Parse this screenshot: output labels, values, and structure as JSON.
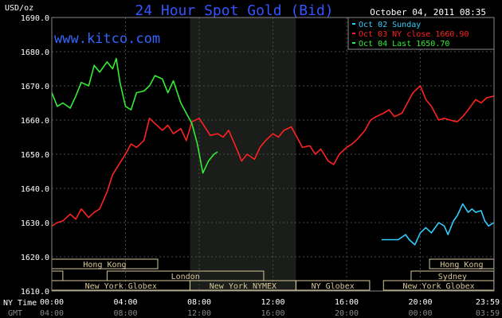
{
  "chart_data": {
    "type": "line",
    "title": "24 Hour Spot Gold (Bid)",
    "ylabel": "USD/oz",
    "watermark": "www.kitco.com",
    "timestamp": "October 04, 2011 08:35",
    "ylim": [
      1610,
      1690
    ],
    "yticks": [
      "1690.0",
      "1680.0",
      "1670.0",
      "1660.0",
      "1650.0",
      "1640.0",
      "1630.0",
      "1620.0",
      "1610.0"
    ],
    "xlim": [
      0,
      24
    ],
    "xticks_ny": [
      "00:00",
      "04:00",
      "08:00",
      "12:00",
      "16:00",
      "20:00",
      "23:59"
    ],
    "xticks_gmt": [
      "04:00",
      "08:00",
      "12:00",
      "16:00",
      "20:00",
      "00:00",
      "03:59"
    ],
    "xlabel_ny": "NY Time",
    "xlabel_gmt": "GMT",
    "nymex_shade": [
      7.5,
      13.25
    ],
    "legend": [
      {
        "label": "Oct 02 Sunday",
        "color": "#33ccff"
      },
      {
        "label": "Oct 03 NY close 1660.90",
        "color": "#ff2222"
      },
      {
        "label": "Oct 04 Last 1650.70",
        "color": "#33ee33"
      }
    ],
    "sessions": [
      {
        "name": "Hong Kong",
        "row": 0,
        "x0": 0,
        "x1": 5.75
      },
      {
        "name": "Hong Kong",
        "row": 0,
        "x0": 20.5,
        "x1": 23.99
      },
      {
        "name": "",
        "row": 1,
        "x0": 0,
        "x1": 0.6
      },
      {
        "name": "London",
        "row": 1,
        "x0": 3.0,
        "x1": 11.5
      },
      {
        "name": "Sydney",
        "row": 1,
        "x0": 19.5,
        "x1": 23.99
      },
      {
        "name": "New York Globex",
        "row": 2,
        "x0": 0,
        "x1": 7.5
      },
      {
        "name": "New York NYMEX",
        "row": 2,
        "x0": 7.5,
        "x1": 13.25
      },
      {
        "name": "NY Globex",
        "row": 2,
        "x0": 13.25,
        "x1": 17.25
      },
      {
        "name": "New York Globex",
        "row": 2,
        "x0": 18.0,
        "x1": 23.99
      }
    ],
    "series": [
      {
        "name": "Oct 02 Sunday",
        "color": "#33ccff",
        "x": [
          17.9,
          18.3,
          18.8,
          19.2,
          19.4,
          19.7,
          20.0,
          20.3,
          20.6,
          21.0,
          21.3,
          21.5,
          21.8,
          22.0,
          22.3,
          22.6,
          22.8,
          23.0,
          23.3,
          23.5,
          23.7,
          23.99
        ],
        "y": [
          1625.0,
          1625.0,
          1625.0,
          1626.5,
          1625.0,
          1623.5,
          1627.0,
          1628.5,
          1627.0,
          1630.0,
          1629.0,
          1626.5,
          1630.5,
          1632.0,
          1635.5,
          1633.0,
          1634.0,
          1633.0,
          1633.5,
          1630.5,
          1629.0,
          1630.0
        ]
      },
      {
        "name": "Oct 03 NY close 1660.90",
        "color": "#ff2222",
        "x": [
          0.0,
          0.3,
          0.6,
          1.0,
          1.3,
          1.6,
          2.0,
          2.3,
          2.6,
          3.0,
          3.3,
          3.7,
          4.0,
          4.3,
          4.6,
          5.0,
          5.3,
          5.6,
          6.0,
          6.3,
          6.6,
          7.0,
          7.3,
          7.6,
          8.0,
          8.3,
          8.6,
          9.0,
          9.3,
          9.6,
          10.0,
          10.3,
          10.6,
          11.0,
          11.3,
          11.6,
          12.0,
          12.3,
          12.6,
          13.0,
          13.3,
          13.6,
          14.0,
          14.3,
          14.6,
          15.0,
          15.3,
          15.6,
          16.0,
          16.3,
          16.6,
          17.0,
          17.3,
          17.6,
          18.0,
          18.3,
          18.6,
          19.0,
          19.3,
          19.6,
          20.0,
          20.3,
          20.6,
          21.0,
          21.3,
          21.6,
          22.0,
          22.3,
          22.6,
          23.0,
          23.3,
          23.6,
          23.99
        ],
        "y": [
          1629.0,
          1630.0,
          1630.5,
          1632.5,
          1631.0,
          1634.0,
          1631.5,
          1633.0,
          1634.0,
          1639.0,
          1644.0,
          1647.5,
          1650.0,
          1653.0,
          1652.0,
          1654.0,
          1660.5,
          1659.0,
          1657.0,
          1658.5,
          1656.0,
          1657.5,
          1654.0,
          1659.5,
          1660.5,
          1658.0,
          1655.5,
          1656.0,
          1655.0,
          1657.0,
          1652.0,
          1648.0,
          1650.0,
          1648.5,
          1652.0,
          1654.0,
          1656.0,
          1655.0,
          1657.0,
          1658.0,
          1655.0,
          1652.0,
          1652.5,
          1650.0,
          1651.5,
          1648.0,
          1647.0,
          1650.0,
          1652.0,
          1653.0,
          1654.5,
          1657.0,
          1660.0,
          1661.0,
          1662.0,
          1663.0,
          1661.0,
          1662.0,
          1665.0,
          1668.0,
          1670.0,
          1666.0,
          1664.0,
          1660.0,
          1660.5,
          1660.0,
          1659.5,
          1661.0,
          1663.0,
          1666.0,
          1665.0,
          1666.5,
          1667.0
        ]
      },
      {
        "name": "Oct 04 Last 1650.70",
        "color": "#33ee33",
        "x": [
          0.0,
          0.3,
          0.6,
          1.0,
          1.3,
          1.6,
          2.0,
          2.3,
          2.6,
          3.0,
          3.3,
          3.5,
          3.7,
          4.0,
          4.3,
          4.6,
          5.0,
          5.3,
          5.6,
          6.0,
          6.3,
          6.6,
          7.0,
          7.3,
          7.6,
          7.9,
          8.2,
          8.5,
          8.8,
          9.0
        ],
        "y": [
          1668.0,
          1664.0,
          1665.0,
          1663.5,
          1667.0,
          1671.0,
          1670.0,
          1676.0,
          1674.0,
          1677.0,
          1675.0,
          1678.0,
          1671.0,
          1664.0,
          1663.0,
          1668.0,
          1668.5,
          1670.0,
          1673.0,
          1672.0,
          1668.0,
          1671.5,
          1665.0,
          1662.0,
          1659.0,
          1653.0,
          1644.5,
          1648.0,
          1650.0,
          1650.7
        ]
      }
    ]
  }
}
